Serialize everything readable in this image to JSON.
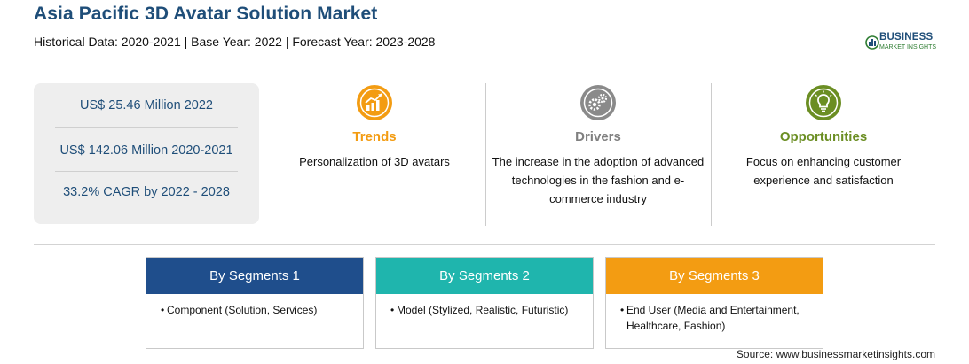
{
  "header": {
    "title": "Asia Pacific 3D Avatar Solution Market",
    "subtitle": "Historical Data: 2020-2021 | Base Year: 2022 | Forecast Year: 2023-2028"
  },
  "logo": {
    "name": "BUSINESS",
    "tagline": "MARKET INSIGHTS"
  },
  "stats": [
    "US$ 25.46 Million 2022",
    "US$ 142.06 Million 2020-2021",
    "33.2% CAGR by 2022 - 2028"
  ],
  "columns": [
    {
      "heading": "Trends",
      "icon": "trend-chart-icon",
      "color": "#f39c12",
      "text": "Personalization of 3D avatars"
    },
    {
      "heading": "Drivers",
      "icon": "gears-icon",
      "color": "#808080",
      "text": "The increase in the adoption of advanced technologies in the fashion and e-commerce industry"
    },
    {
      "heading": "Opportunities",
      "icon": "lightbulb-icon",
      "color": "#6b8e23",
      "text": "Focus on enhancing customer experience and satisfaction"
    }
  ],
  "segments": [
    {
      "heading": "By Segments 1",
      "color": "#1f4e8c",
      "items": [
        "Component (Solution, Services)"
      ]
    },
    {
      "heading": "By Segments 2",
      "color": "#1fb5ad",
      "items": [
        "Model (Stylized, Realistic, Futuristic)"
      ]
    },
    {
      "heading": "By Segments 3",
      "color": "#f39c12",
      "items": [
        "End User (Media and Entertainment, Healthcare, Fashion)"
      ]
    }
  ],
  "source": "Source: www.businessmarketinsights.com"
}
